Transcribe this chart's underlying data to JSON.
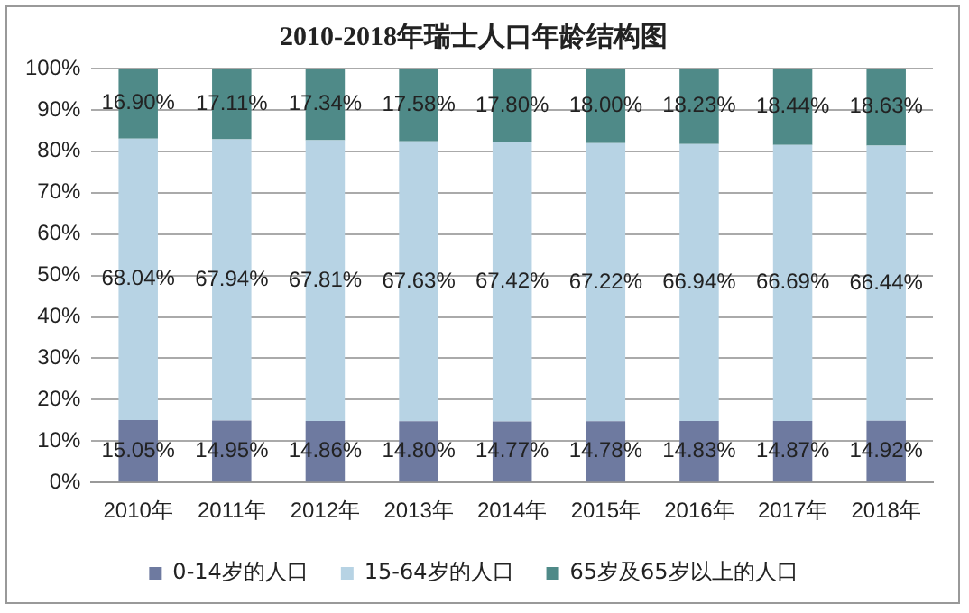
{
  "chart_data": {
    "type": "bar",
    "title": "2010-2018年瑞士人口年龄结构图",
    "stacked": true,
    "grid": "y",
    "legend": "bottom",
    "categories": [
      "2010年",
      "2011年",
      "2012年",
      "2013年",
      "2014年",
      "2015年",
      "2016年",
      "2017年",
      "2018年"
    ],
    "ylim": [
      0,
      100
    ],
    "yticks": [
      {
        "value": 0,
        "label": "0%"
      },
      {
        "value": 10,
        "label": "10%"
      },
      {
        "value": 20,
        "label": "20%"
      },
      {
        "value": 30,
        "label": "30%"
      },
      {
        "value": 40,
        "label": "40%"
      },
      {
        "value": 50,
        "label": "50%"
      },
      {
        "value": 60,
        "label": "60%"
      },
      {
        "value": 70,
        "label": "70%"
      },
      {
        "value": 80,
        "label": "80%"
      },
      {
        "value": 90,
        "label": "90%"
      },
      {
        "value": 100,
        "label": "100%"
      }
    ],
    "series": [
      {
        "name": "0-14岁的人口",
        "color": "#6e7aa0",
        "values": [
          15.05,
          14.95,
          14.86,
          14.8,
          14.77,
          14.78,
          14.83,
          14.87,
          14.92
        ],
        "value_labels": [
          "15.05%",
          "14.95%",
          "14.86%",
          "14.80%",
          "14.77%",
          "14.78%",
          "14.83%",
          "14.87%",
          "14.92%"
        ]
      },
      {
        "name": "15-64岁的人口",
        "color": "#b7d3e4",
        "values": [
          68.04,
          67.94,
          67.81,
          67.63,
          67.42,
          67.22,
          66.94,
          66.69,
          66.44
        ],
        "value_labels": [
          "68.04%",
          "67.94%",
          "67.81%",
          "67.63%",
          "67.42%",
          "67.22%",
          "66.94%",
          "66.69%",
          "66.44%"
        ]
      },
      {
        "name": "65岁及65岁以上的人口",
        "color": "#4f8a88",
        "values": [
          16.9,
          17.11,
          17.34,
          17.58,
          17.8,
          18.0,
          18.23,
          18.44,
          18.63
        ],
        "value_labels": [
          "16.90%",
          "17.11%",
          "17.34%",
          "17.58%",
          "17.80%",
          "18.00%",
          "18.23%",
          "18.44%",
          "18.63%"
        ]
      }
    ]
  }
}
